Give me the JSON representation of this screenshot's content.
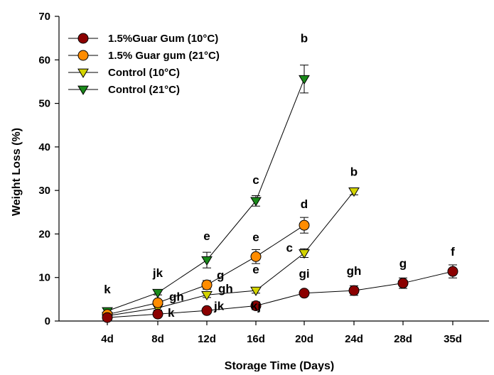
{
  "chart_data": {
    "type": "line",
    "title": "",
    "xlabel": "Storage Time (Days)",
    "ylabel": "Weight Loss (%)",
    "categories": [
      "4d",
      "8d",
      "12d",
      "16d",
      "20d",
      "24d",
      "28d",
      "35d"
    ],
    "ylim": [
      0,
      70
    ],
    "yticks": [
      0,
      10,
      20,
      30,
      40,
      50,
      60,
      70
    ],
    "grid": false,
    "legend_position": "top-left",
    "series": [
      {
        "name": "1.5%Guar Gum (10°C)",
        "marker": "circle",
        "color": "#8b0000",
        "x": [
          "4d",
          "8d",
          "12d",
          "16d",
          "20d",
          "24d",
          "28d",
          "35d"
        ],
        "values": [
          0.8,
          1.6,
          2.4,
          3.5,
          6.4,
          7.0,
          8.7,
          11.4
        ],
        "errors": [
          0.3,
          0.4,
          0.6,
          0.6,
          0.6,
          1.1,
          1.2,
          1.5
        ],
        "labels": [
          "",
          "k",
          "jk",
          "kj",
          "gi",
          "gh",
          "g",
          "f"
        ]
      },
      {
        "name": "1.5% Guar gum (21°C)",
        "marker": "circle",
        "color": "#ff8c00",
        "x": [
          "4d",
          "8d",
          "12d",
          "16d",
          "20d"
        ],
        "values": [
          1.5,
          4.2,
          8.3,
          14.8,
          22.0
        ],
        "errors": [
          0.3,
          0.6,
          1.0,
          1.6,
          1.8
        ],
        "labels": [
          "",
          "gh",
          "g",
          "e",
          "d"
        ]
      },
      {
        "name": "Control (10°C)",
        "marker": "triangle-down",
        "color": "#d4d400",
        "x": [
          "4d",
          "8d",
          "12d",
          "16d",
          "20d",
          "24d"
        ],
        "values": [
          1.2,
          3.0,
          6.0,
          7.0,
          15.6,
          29.8
        ],
        "errors": [
          0.3,
          0.5,
          0.6,
          0.6,
          1.0,
          0.8
        ],
        "labels": [
          "",
          "",
          "gh",
          "e",
          "c",
          "b"
        ]
      },
      {
        "name": "Control (21°C)",
        "marker": "triangle-down",
        "color": "#1a8a1a",
        "x": [
          "4d",
          "8d",
          "12d",
          "16d",
          "20d"
        ],
        "values": [
          2.3,
          6.5,
          14.0,
          27.6,
          55.6
        ],
        "errors": [
          0.4,
          0.5,
          1.8,
          1.2,
          3.2
        ],
        "labels": [
          "k",
          "jk",
          "e",
          "c",
          "b"
        ]
      }
    ]
  }
}
